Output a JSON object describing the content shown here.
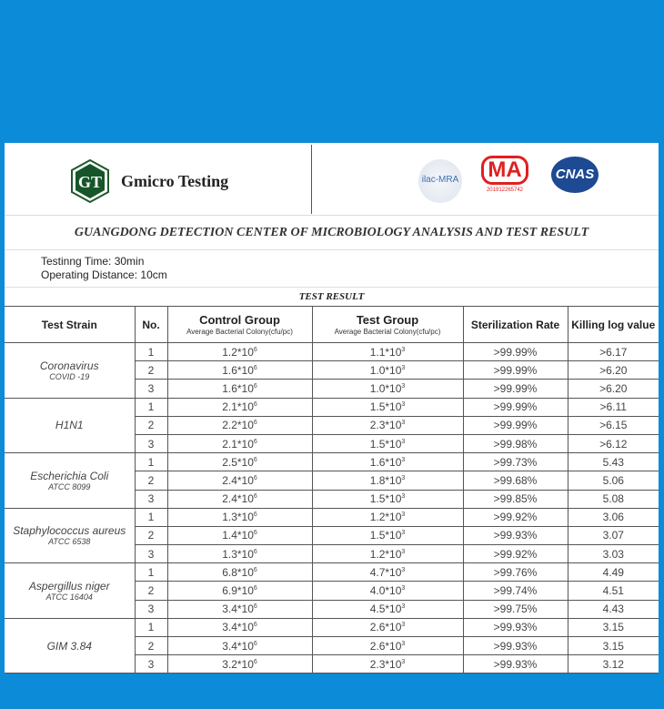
{
  "header": {
    "brand": "Gmicro Testing",
    "logo_text": "GT",
    "cert_logos": {
      "ilac": "ilac-MRA",
      "cma": "MA",
      "cma_number": "201912265742",
      "cnas": "CNAS"
    }
  },
  "title": "GUANGDONG DETECTION CENTER OF MICROBIOLOGY ANALYSIS AND TEST RESULT",
  "info": {
    "testing_time": "Testinng Time: 30min",
    "operating_distance": "Operating Distance: 10cm"
  },
  "table_title": "TEST RESULT",
  "columns": {
    "strain": "Test Strain",
    "no": "No.",
    "control": "Control Group",
    "control_sub": "Average  Bacterial Colony(cfu/pc)",
    "test": "Test Group",
    "test_sub": "Average  Bacterial Colony(cfu/pc)",
    "rate": "Sterilization Rate",
    "kill": "Killing log value"
  },
  "groups": [
    {
      "name": "Coronavirus",
      "sub": "COVID -19",
      "rows": [
        {
          "no": "1",
          "control": "1.2*10",
          "control_exp": "6",
          "test": "1.1*10",
          "test_exp": "3",
          "rate": ">99.99%",
          "kill": ">6.17"
        },
        {
          "no": "2",
          "control": "1.6*10",
          "control_exp": "6",
          "test": "1.0*10",
          "test_exp": "3",
          "rate": ">99.99%",
          "kill": ">6.20"
        },
        {
          "no": "3",
          "control": "1.6*10",
          "control_exp": "6",
          "test": "1.0*10",
          "test_exp": "3",
          "rate": ">99.99%",
          "kill": ">6.20"
        }
      ]
    },
    {
      "name": "H1N1",
      "sub": "",
      "rows": [
        {
          "no": "1",
          "control": "2.1*10",
          "control_exp": "6",
          "test": "1.5*10",
          "test_exp": "3",
          "rate": ">99.99%",
          "kill": ">6.11"
        },
        {
          "no": "2",
          "control": "2.2*10",
          "control_exp": "6",
          "test": "2.3*10",
          "test_exp": "3",
          "rate": ">99.99%",
          "kill": ">6.15"
        },
        {
          "no": "3",
          "control": "2.1*10",
          "control_exp": "6",
          "test": "1.5*10",
          "test_exp": "3",
          "rate": ">99.98%",
          "kill": ">6.12"
        }
      ]
    },
    {
      "name": "Escherichia Coli",
      "sub": "ATCC 8099",
      "rows": [
        {
          "no": "1",
          "control": "2.5*10",
          "control_exp": "6",
          "test": "1.6*10",
          "test_exp": "3",
          "rate": ">99.73%",
          "kill": "5.43"
        },
        {
          "no": "2",
          "control": "2.4*10",
          "control_exp": "6",
          "test": "1.8*10",
          "test_exp": "3",
          "rate": ">99.68%",
          "kill": "5.06"
        },
        {
          "no": "3",
          "control": "2.4*10",
          "control_exp": "6",
          "test": "1.5*10",
          "test_exp": "3",
          "rate": ">99.85%",
          "kill": "5.08"
        }
      ]
    },
    {
      "name": "Staphylococcus aureus",
      "sub": "ATCC 6538",
      "rows": [
        {
          "no": "1",
          "control": "1.3*10",
          "control_exp": "6",
          "test": "1.2*10",
          "test_exp": "3",
          "rate": ">99.92%",
          "kill": "3.06"
        },
        {
          "no": "2",
          "control": "1.4*10",
          "control_exp": "6",
          "test": "1.5*10",
          "test_exp": "3",
          "rate": ">99.93%",
          "kill": "3.07"
        },
        {
          "no": "3",
          "control": "1.3*10",
          "control_exp": "6",
          "test": "1.2*10",
          "test_exp": "3",
          "rate": ">99.92%",
          "kill": "3.03"
        }
      ]
    },
    {
      "name": "Aspergillus niger",
      "sub": "ATCC 16404",
      "rows": [
        {
          "no": "1",
          "control": "6.8*10",
          "control_exp": "6",
          "test": "4.7*10",
          "test_exp": "3",
          "rate": ">99.76%",
          "kill": "4.49"
        },
        {
          "no": "2",
          "control": "6.9*10",
          "control_exp": "6",
          "test": "4.0*10",
          "test_exp": "3",
          "rate": ">99.74%",
          "kill": "4.51"
        },
        {
          "no": "3",
          "control": "3.4*10",
          "control_exp": "6",
          "test": "4.5*10",
          "test_exp": "3",
          "rate": ">99.75%",
          "kill": "4.43"
        }
      ]
    },
    {
      "name": "GIM 3.84",
      "sub": "",
      "rows": [
        {
          "no": "1",
          "control": "3.4*10",
          "control_exp": "6",
          "test": "2.6*10",
          "test_exp": "3",
          "rate": ">99.93%",
          "kill": "3.15"
        },
        {
          "no": "2",
          "control": "3.4*10",
          "control_exp": "6",
          "test": "2.6*10",
          "test_exp": "3",
          "rate": ">99.93%",
          "kill": "3.15"
        },
        {
          "no": "3",
          "control": "3.2*10",
          "control_exp": "6",
          "test": "2.3*10",
          "test_exp": "3",
          "rate": ">99.93%",
          "kill": "3.12"
        }
      ]
    }
  ]
}
